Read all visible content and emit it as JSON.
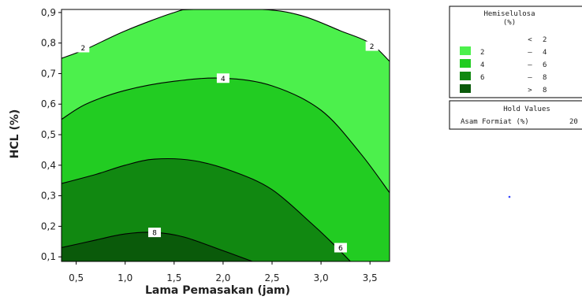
{
  "chart_data": {
    "type": "contour",
    "xlabel": "Lama Pemasakan (jam)",
    "ylabel": "HCL (%)",
    "xlim": [
      0.35,
      3.7
    ],
    "ylim": [
      0.085,
      0.91
    ],
    "x_ticks": [
      "0,5",
      "1,0",
      "1,5",
      "2,0",
      "2,5",
      "3,0",
      "3,5"
    ],
    "x_tick_values": [
      0.5,
      1.0,
      1.5,
      2.0,
      2.5,
      3.0,
      3.5
    ],
    "y_ticks": [
      "0,1",
      "0,2",
      "0,3",
      "0,4",
      "0,5",
      "0,6",
      "0,7",
      "0,8",
      "0,9"
    ],
    "y_tick_values": [
      0.1,
      0.2,
      0.3,
      0.4,
      0.5,
      0.6,
      0.7,
      0.8,
      0.9
    ],
    "contour_levels": [
      2,
      4,
      6,
      8
    ],
    "regions": [
      {
        "range": "< 2",
        "color": "#ffffff"
      },
      {
        "range": "2 - 4",
        "color": "#4cf04c"
      },
      {
        "range": "4 - 6",
        "color": "#22cc22"
      },
      {
        "range": "6 - 8",
        "color": "#118811"
      },
      {
        "range": "> 8",
        "color": "#0a5a0a"
      }
    ],
    "contour_lines": [
      {
        "level": 2,
        "points": [
          [
            0.35,
            0.75
          ],
          [
            0.6,
            0.78
          ],
          [
            1.0,
            0.84
          ],
          [
            1.5,
            0.9
          ],
          [
            1.7,
            0.91
          ],
          [
            2.4,
            0.91
          ],
          [
            2.8,
            0.89
          ],
          [
            3.2,
            0.84
          ],
          [
            3.5,
            0.8
          ],
          [
            3.7,
            0.74
          ]
        ]
      },
      {
        "level": 4,
        "points": [
          [
            0.35,
            0.55
          ],
          [
            0.6,
            0.6
          ],
          [
            1.0,
            0.645
          ],
          [
            1.5,
            0.675
          ],
          [
            2.0,
            0.685
          ],
          [
            2.5,
            0.66
          ],
          [
            3.0,
            0.58
          ],
          [
            3.4,
            0.44
          ],
          [
            3.7,
            0.31
          ]
        ]
      },
      {
        "level": 6,
        "points": [
          [
            0.35,
            0.34
          ],
          [
            0.7,
            0.37
          ],
          [
            1.0,
            0.4
          ],
          [
            1.3,
            0.42
          ],
          [
            1.7,
            0.415
          ],
          [
            2.1,
            0.38
          ],
          [
            2.5,
            0.32
          ],
          [
            2.9,
            0.21
          ],
          [
            3.1,
            0.15
          ],
          [
            3.3,
            0.085
          ]
        ]
      },
      {
        "level": 8,
        "points": [
          [
            0.35,
            0.13
          ],
          [
            0.7,
            0.155
          ],
          [
            1.0,
            0.175
          ],
          [
            1.3,
            0.18
          ],
          [
            1.6,
            0.165
          ],
          [
            2.0,
            0.12
          ],
          [
            2.3,
            0.085
          ]
        ]
      }
    ],
    "contour_labels": [
      {
        "text": "2",
        "x": 0.57,
        "y": 0.785
      },
      {
        "text": "2",
        "x": 3.52,
        "y": 0.79
      },
      {
        "text": "4",
        "x": 2.0,
        "y": 0.685
      },
      {
        "text": "6",
        "x": 3.2,
        "y": 0.13
      },
      {
        "text": "8",
        "x": 1.3,
        "y": 0.18
      }
    ],
    "legend": {
      "title_line1": "Hemiselulosa",
      "title_line2": "(%)",
      "items": [
        {
          "low": "",
          "sep": "<",
          "high": "2",
          "color": ""
        },
        {
          "low": "2",
          "sep": "–",
          "high": "4",
          "color": "#4cf04c"
        },
        {
          "low": "4",
          "sep": "–",
          "high": "6",
          "color": "#22cc22"
        },
        {
          "low": "6",
          "sep": "–",
          "high": "8",
          "color": "#118811"
        },
        {
          "low": "",
          "sep": ">",
          "high": "8",
          "color": "#0a5a0a"
        }
      ]
    },
    "hold_values": {
      "title": "Hold Values",
      "label": "Asam Formiat (%)",
      "value": "20"
    }
  }
}
